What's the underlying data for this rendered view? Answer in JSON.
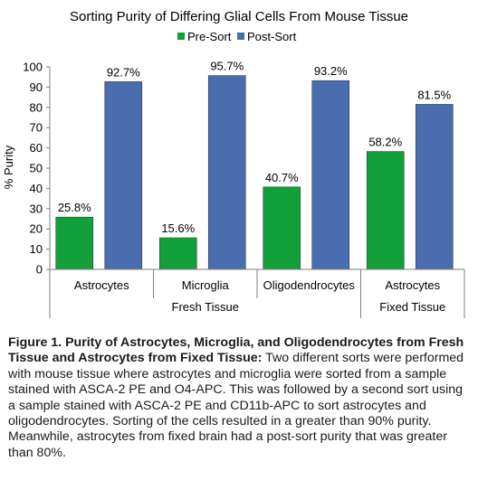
{
  "chart_data": {
    "type": "bar",
    "title": "Sorting Purity of Differing Glial Cells From Mouse Tissue",
    "ylabel": "% Purity",
    "xlabel": "",
    "ylim": [
      0,
      100
    ],
    "yticks": [
      0,
      10,
      20,
      30,
      40,
      50,
      60,
      70,
      80,
      90,
      100
    ],
    "categories": [
      "Astrocytes",
      "Microglia",
      "Oligodendrocytes",
      "Astrocytes"
    ],
    "groups": [
      {
        "label": "Fresh Tissue",
        "categories": [
          "Astrocytes",
          "Microglia",
          "Oligodendrocytes"
        ]
      },
      {
        "label": "Fixed Tissue",
        "categories": [
          "Astrocytes"
        ]
      }
    ],
    "series": [
      {
        "name": "Pre-Sort",
        "color": "#12a03a",
        "values": [
          25.8,
          15.6,
          40.7,
          58.2
        ],
        "labels": [
          "25.8%",
          "15.6%",
          "40.7%",
          "58.2%"
        ]
      },
      {
        "name": "Post-Sort",
        "color": "#4a6db0",
        "values": [
          92.7,
          95.7,
          93.2,
          81.5
        ],
        "labels": [
          "92.7%",
          "95.7%",
          "93.2%",
          "81.5%"
        ]
      }
    ],
    "legend": "top",
    "grid": false
  },
  "caption": {
    "bold": "Figure 1. Purity of Astrocytes, Microglia, and Oligodendrocytes from Fresh Tissue and Astrocytes from Fixed Tissue:",
    "text": " Two different sorts were performed with mouse tissue where astrocytes and microglia were sorted from a sample stained with ASCA-2 PE and O4-APC. This was followed by a second sort using a sample stained with ASCA-2 PE and CD11b-APC to sort astrocytes and oligodendrocytes. Sorting of the cells resulted in a greater than 90% purity. Meanwhile, astrocytes from fixed brain had a post-sort purity that was greater than 80%."
  }
}
